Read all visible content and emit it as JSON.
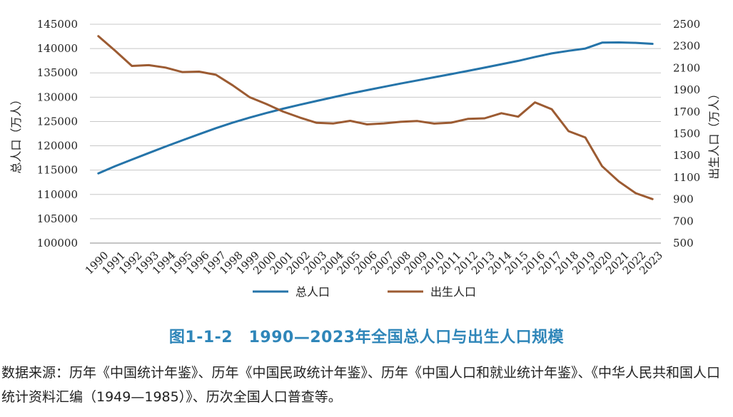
{
  "colors": {
    "series1": "#2574a9",
    "series2": "#9c5b32",
    "caption": "#2f86b9",
    "grid": "#c8c8c8"
  },
  "caption": "图1-1-2　1990—2023年全国总人口与出生人口规模",
  "source_note": "数据来源：历年《中国统计年鉴》、历年《中国民政统计年鉴》、历年《中国人口和就业统计年鉴》、《中华人民共和国人口统计资料汇编（1949—1985）》、历次全国人口普查等。",
  "chart_data": {
    "type": "line",
    "x": [
      "1990",
      "1991",
      "1992",
      "1993",
      "1994",
      "1995",
      "1996",
      "1997",
      "1998",
      "1999",
      "2000",
      "2001",
      "2002",
      "2003",
      "2004",
      "2005",
      "2006",
      "2007",
      "2008",
      "2009",
      "2010",
      "2011",
      "2012",
      "2013",
      "2014",
      "2015",
      "2016",
      "2017",
      "2018",
      "2019",
      "2020",
      "2021",
      "2022",
      "2023"
    ],
    "y_left_label": "总人口（万人）",
    "y_right_label": "出生人口（万人）",
    "y_left_range": [
      100000,
      145000
    ],
    "y_left_ticks": [
      "100000",
      "105000",
      "110000",
      "115000",
      "120000",
      "125000",
      "130000",
      "135000",
      "140000",
      "145000"
    ],
    "y_right_range": [
      500,
      2500
    ],
    "y_right_ticks": [
      "500",
      "700",
      "900",
      "1100",
      "1300",
      "1500",
      "1700",
      "1900",
      "2100",
      "2300",
      "2500"
    ],
    "grid": true,
    "legend_position": "bottom",
    "series": [
      {
        "name": "总人口",
        "axis": "left",
        "values": [
          114333,
          115823,
          117171,
          118517,
          119850,
          121121,
          122389,
          123626,
          124761,
          125786,
          126743,
          127627,
          128453,
          129227,
          129988,
          130756,
          131448,
          132129,
          132802,
          133450,
          134091,
          134735,
          135404,
          136072,
          136782,
          137462,
          138271,
          139008,
          139538,
          140005,
          141212,
          141260,
          141175,
          140967
        ]
      },
      {
        "name": "出生人口",
        "axis": "right",
        "values": [
          2391,
          2258,
          2119,
          2126,
          2104,
          2063,
          2067,
          2038,
          1942,
          1834,
          1771,
          1702,
          1647,
          1599,
          1593,
          1617,
          1585,
          1594,
          1608,
          1615,
          1592,
          1600,
          1635,
          1640,
          1687,
          1655,
          1786,
          1723,
          1523,
          1465,
          1202,
          1062,
          956,
          902
        ]
      }
    ]
  }
}
